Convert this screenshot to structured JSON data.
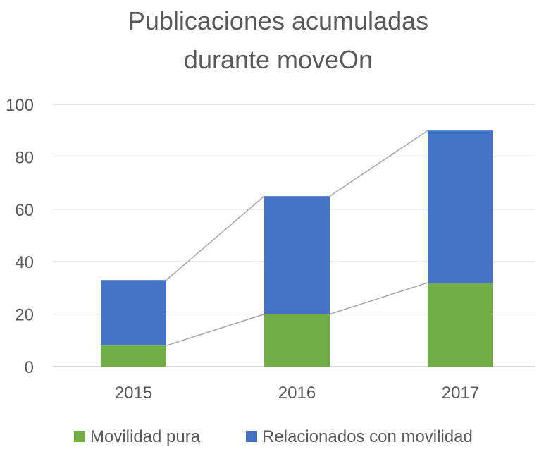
{
  "chart_data": {
    "type": "bar",
    "stacked": true,
    "title_lines": [
      "Publicaciones acumuladas",
      "durante moveOn"
    ],
    "categories": [
      "2015",
      "2016",
      "2017"
    ],
    "series": [
      {
        "name": "Movilidad pura",
        "color": "#70AD47",
        "values": [
          8,
          20,
          32
        ]
      },
      {
        "name": "Relacionados con movilidad",
        "color": "#4472C4",
        "values": [
          25,
          45,
          58
        ]
      }
    ],
    "xlabel": "",
    "ylabel": "",
    "ylim": [
      0,
      100
    ],
    "yticks": [
      "0",
      "20",
      "40",
      "60",
      "80",
      "100"
    ],
    "grid": true,
    "series_lines": true,
    "legend": "bottom"
  }
}
